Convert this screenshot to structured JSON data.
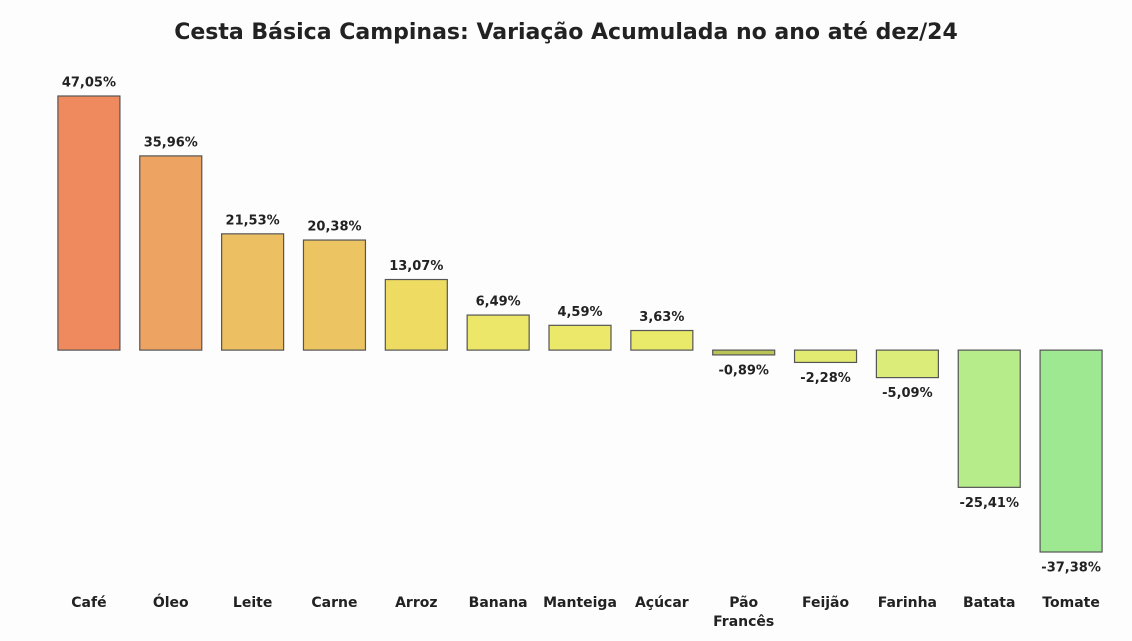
{
  "chart_data": {
    "type": "bar",
    "title": "Cesta Básica Campinas: Variação Acumulada no ano até dez/24",
    "categories": [
      "Café",
      "Óleo",
      "Leite",
      "Carne",
      "Arroz",
      "Banana",
      "Manteiga",
      "Açúcar",
      "Pão Francês",
      "Feijão",
      "Farinha",
      "Batata",
      "Tomate"
    ],
    "values": [
      47.05,
      35.96,
      21.53,
      20.38,
      13.07,
      6.49,
      4.59,
      3.63,
      -0.89,
      -2.28,
      -5.09,
      -25.41,
      -37.38
    ],
    "value_labels": [
      "47,05%",
      "35,96%",
      "21,53%",
      "20,38%",
      "13,07%",
      "6,49%",
      "4,59%",
      "3,63%",
      "-0,89%",
      "-2,28%",
      "-5,09%",
      "-25,41%",
      "-37,38%"
    ],
    "colors": [
      "#ee8a5e",
      "#eda361",
      "#ecc062",
      "#ecc462",
      "#eddb62",
      "#ede769",
      "#ece869",
      "#e9ea6a",
      "#b9c457",
      "#e2ea72",
      "#dbec78",
      "#b6ec8a",
      "#9ee891"
    ]
  }
}
